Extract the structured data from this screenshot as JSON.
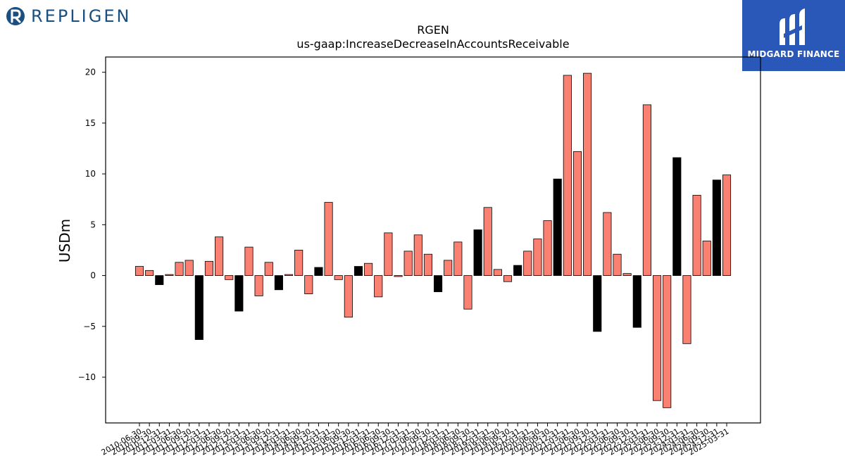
{
  "brand_left": {
    "text": "REPLIGEN",
    "icon": "repligen-logo-icon"
  },
  "brand_right": {
    "text": "MIDGARD FINANCE",
    "icon": "midgard-emblem-icon"
  },
  "colors": {
    "positive_bar": "#fa8072",
    "highlight_bar": "#000000",
    "brand_left": "#1b4f80",
    "brand_right_bg": "#2a58b8"
  },
  "chart_data": {
    "type": "bar",
    "title": "RGEN",
    "subtitle": "us-gaap:IncreaseDecreaseInAccountsReceivable",
    "xlabel": "",
    "ylabel": "USDm",
    "ylim": [
      -14.5,
      21.5
    ],
    "yticks": [
      -10,
      -5,
      0,
      5,
      10,
      15,
      20
    ],
    "grid": false,
    "categories": [
      "2010-06-30",
      "2010-09-30",
      "2010-12-31",
      "2011-03-31",
      "2011-06-30",
      "2011-09-30",
      "2011-12-31",
      "2012-03-31",
      "2012-06-30",
      "2012-09-30",
      "2012-12-31",
      "2013-03-31",
      "2013-06-30",
      "2013-09-30",
      "2013-12-31",
      "2014-03-31",
      "2014-06-30",
      "2014-09-30",
      "2014-12-31",
      "2015-03-31",
      "2015-06-30",
      "2015-09-30",
      "2015-12-31",
      "2016-03-31",
      "2016-06-30",
      "2016-09-30",
      "2016-12-31",
      "2017-03-31",
      "2017-06-30",
      "2017-09-30",
      "2017-12-31",
      "2018-03-31",
      "2018-06-30",
      "2018-09-30",
      "2018-12-31",
      "2019-03-31",
      "2019-06-30",
      "2019-09-30",
      "2019-12-31",
      "2020-03-31",
      "2020-06-30",
      "2020-09-30",
      "2020-12-31",
      "2021-03-31",
      "2021-06-30",
      "2021-09-30",
      "2021-12-31",
      "2022-03-31",
      "2022-06-30",
      "2022-09-30",
      "2022-12-31",
      "2023-03-31",
      "2023-06-30",
      "2023-09-30",
      "2023-12-31",
      "2024-03-31",
      "2024-06-30",
      "2024-09-30",
      "2024-12-31",
      "2025-03-31"
    ],
    "values": [
      0.9,
      0.5,
      -0.9,
      0.1,
      1.3,
      1.5,
      -6.3,
      1.4,
      3.8,
      -0.4,
      -3.5,
      2.8,
      -2.0,
      1.3,
      -1.4,
      0.1,
      2.5,
      -1.8,
      0.8,
      7.2,
      -0.4,
      -4.1,
      0.9,
      1.2,
      -2.1,
      4.2,
      -0.1,
      2.4,
      4.0,
      2.1,
      -1.6,
      1.5,
      3.3,
      -3.3,
      4.5,
      6.7,
      0.6,
      -0.6,
      1.0,
      2.4,
      3.6,
      5.4,
      9.5,
      19.7,
      12.2,
      19.9,
      -5.5,
      6.2,
      2.1,
      0.2,
      -5.1,
      16.8,
      -12.3,
      -13.0,
      11.6,
      -6.7,
      7.9,
      3.4,
      9.4,
      9.9
    ],
    "highlight": [
      false,
      false,
      true,
      false,
      false,
      false,
      true,
      false,
      false,
      false,
      true,
      false,
      false,
      false,
      true,
      false,
      false,
      false,
      true,
      false,
      false,
      false,
      true,
      false,
      false,
      false,
      false,
      false,
      false,
      false,
      true,
      false,
      false,
      false,
      true,
      false,
      false,
      false,
      true,
      false,
      false,
      false,
      true,
      false,
      false,
      false,
      true,
      false,
      false,
      false,
      true,
      false,
      false,
      false,
      true,
      false,
      false,
      false,
      true,
      false
    ]
  }
}
